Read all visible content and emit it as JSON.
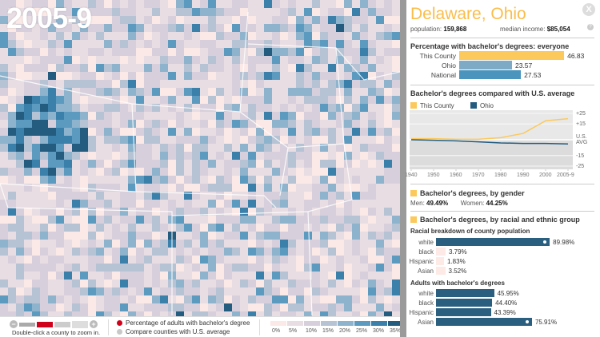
{
  "map": {
    "year": "2005-9"
  },
  "controls": {
    "zoom_hint": "Double-click a county to zoom in.",
    "zoom_in": "+",
    "zoom_out": "−",
    "options": [
      {
        "label": "Percentage of adults with bachelor's degree",
        "color": "#d0021b",
        "selected": true
      },
      {
        "label": "Compare counties with U.S. average",
        "color": "#c8c8c8",
        "selected": false
      }
    ],
    "scale": {
      "labels": [
        "0%",
        "5%",
        "10%",
        "15%",
        "20%",
        "25%",
        "30%",
        "35%"
      ],
      "colors": [
        "#fbe9e7",
        "#e8dde2",
        "#d7d0dc",
        "#b5c3d4",
        "#8eb3cc",
        "#5c9ac0",
        "#3b7fab",
        "#245c7f"
      ]
    }
  },
  "panel": {
    "close": "X",
    "title": "Delaware, Ohio",
    "population_label": "population:",
    "population": "159,868",
    "income_label": "median income:",
    "income": "$85,054",
    "help": "?",
    "overall": {
      "heading": "Percentage with bachelor's degrees:  everyone",
      "rows": [
        {
          "label": "This County",
          "value": "46.83",
          "num": 46.83,
          "color": "#fbc95c"
        },
        {
          "label": "Ohio",
          "value": "23.57",
          "num": 23.57,
          "color": "#7eaac6"
        },
        {
          "label": "National",
          "value": "27.53",
          "num": 27.53,
          "color": "#4a94bd"
        }
      ]
    },
    "compare": {
      "heading": "Bachelor's degrees compared with U.S. average",
      "legend": [
        {
          "label": "This County",
          "color": "#fbc95c"
        },
        {
          "label": "Ohio",
          "color": "#245c7f"
        }
      ],
      "chart_data": {
        "type": "line",
        "x": [
          "1940",
          "1950",
          "1960",
          "1970",
          "1980",
          "1990",
          "2000",
          "2005-9"
        ],
        "y_ticks": [
          "+25",
          "+15",
          "U.S.\nAVG",
          "-15",
          "-25"
        ],
        "y_tick_values": [
          25,
          15,
          0,
          -15,
          -25
        ],
        "ylim": [
          -28,
          28
        ],
        "series": [
          {
            "name": "This County",
            "values": [
              1,
              1,
              0.5,
              0.5,
              2,
              6,
              18,
              20
            ]
          },
          {
            "name": "Ohio",
            "values": [
              0,
              -0.5,
              -1,
              -2,
              -3,
              -3.5,
              -3.5,
              -4
            ]
          }
        ]
      }
    },
    "gender": {
      "heading": "Bachelor's degrees, by gender",
      "men_label": "Men:",
      "men": "49.49%",
      "women_label": "Women:",
      "women": "44.25%"
    },
    "race": {
      "heading": "Bachelor's degrees, by racial and ethnic group",
      "pop_heading": "Racial breakdown of county population",
      "pop": [
        {
          "label": "white",
          "value": "89.98%",
          "num": 89.98,
          "dark": true
        },
        {
          "label": "black",
          "value": "3.79%",
          "num": 3.79
        },
        {
          "label": "Hispanic",
          "value": "1.83%",
          "num": 1.83
        },
        {
          "label": "Asian",
          "value": "3.52%",
          "num": 3.52
        }
      ],
      "deg_heading": "Adults with bachelor's degrees",
      "deg": [
        {
          "label": "white",
          "value": "45.95%",
          "num": 45.95
        },
        {
          "label": "black",
          "value": "44.40%",
          "num": 44.4
        },
        {
          "label": "Hispanic",
          "value": "43.39%",
          "num": 43.39
        },
        {
          "label": "Asian",
          "value": "75.91%",
          "num": 75.91,
          "knob": true
        }
      ]
    }
  }
}
